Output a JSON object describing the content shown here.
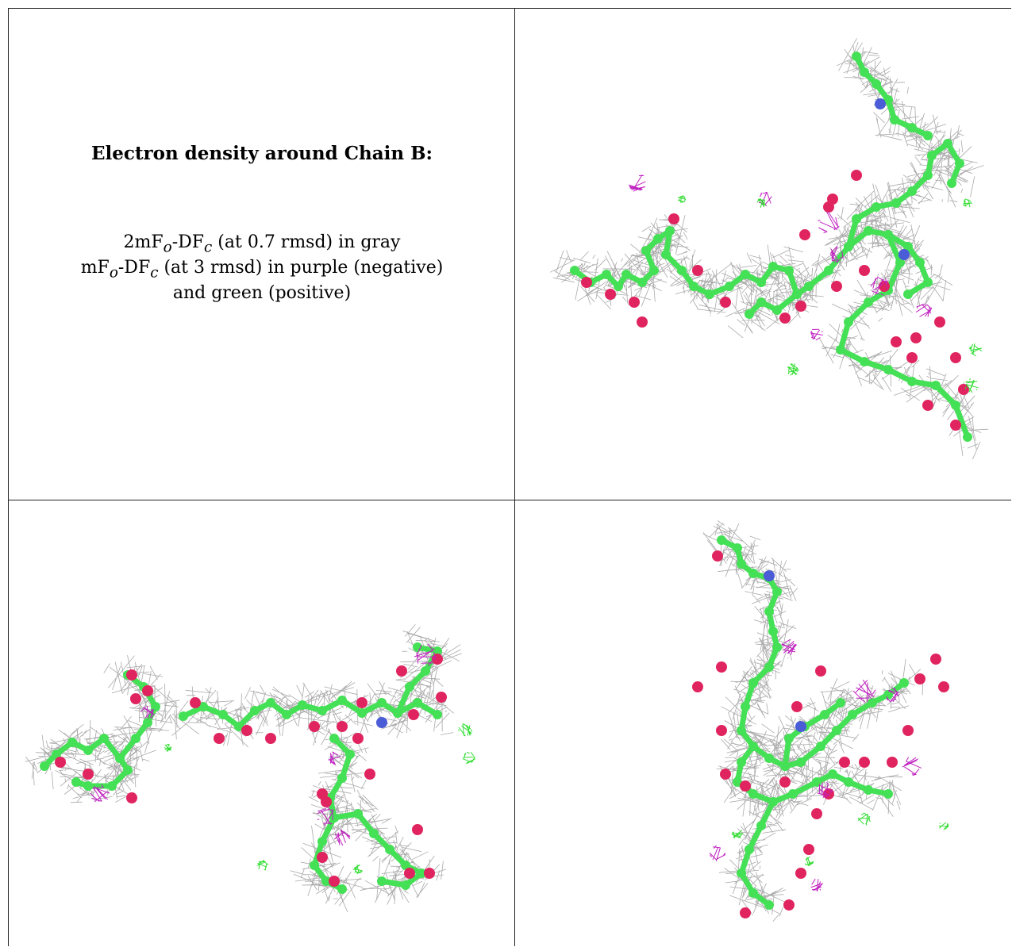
{
  "caption": {
    "title": "Electron density around Chain B:",
    "line1": {
      "pre": "2mF",
      "sub1": "o",
      "mid": "-DF",
      "sub2": "c",
      "post": " (at 0.7 rmsd) in gray"
    },
    "line2": {
      "pre": "mF",
      "sub1": "o",
      "mid": "-DF",
      "sub2": "c",
      "post": " (at 3 rmsd) in purple (negative)"
    },
    "line3": "and green (positive)"
  },
  "colors": {
    "mesh_2fofc": "#9a9a9a",
    "mesh_negative": "#c020c0",
    "mesh_positive": "#33dd33",
    "carbon": "#44e055",
    "oxygen": "#e0245f",
    "nitrogen": "#4a5cd6"
  },
  "panels": [
    {
      "name": "view-top-right",
      "icon": "electron-density-mesh-icon"
    },
    {
      "name": "view-bottom-left",
      "icon": "electron-density-mesh-icon"
    },
    {
      "name": "view-bottom-right",
      "icon": "electron-density-mesh-icon"
    }
  ]
}
